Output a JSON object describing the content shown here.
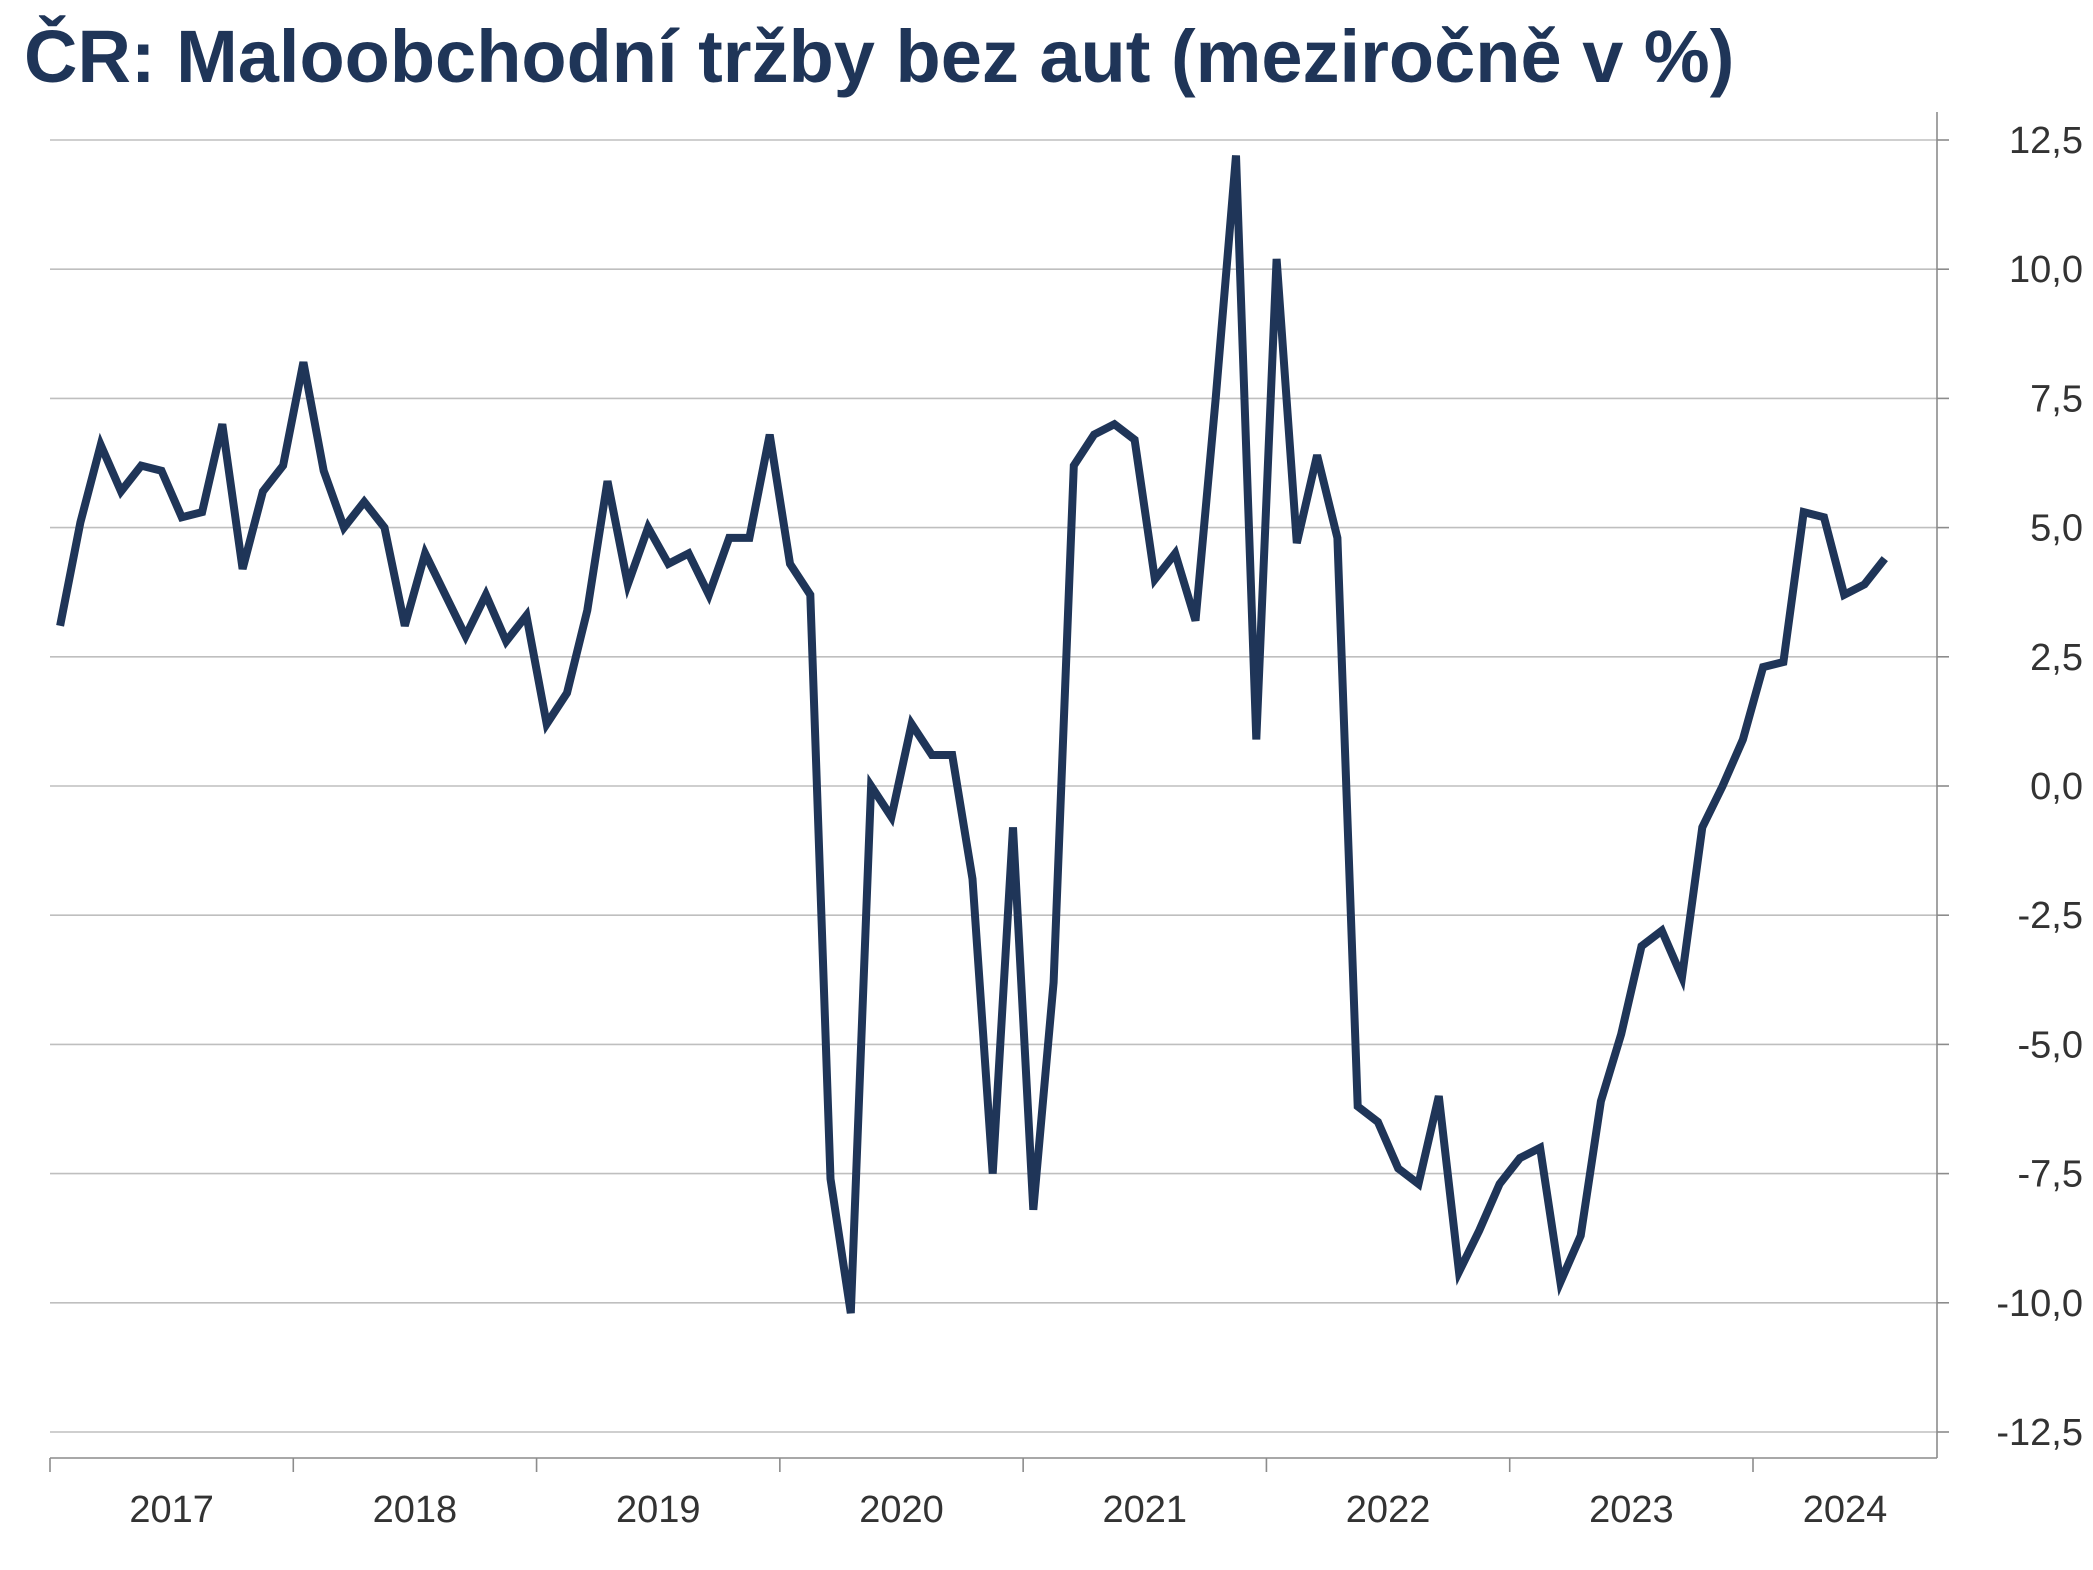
{
  "colors": {
    "title": "#1f3558",
    "line": "#1f3558",
    "grid": "#bfbfbf",
    "axis": "#8c8c8c",
    "tick_text": "#333333"
  },
  "chart_data": {
    "type": "line",
    "title": "ČR: Maloobchodní tržby bez aut (meziročně v %)",
    "xlabel": "",
    "ylabel": "",
    "y_axis_side": "right",
    "grid": "horizontal",
    "legend": "none",
    "ylim": [
      -12.5,
      12.5
    ],
    "yticks": [
      12.5,
      10,
      7.5,
      5,
      2.5,
      0,
      -2.5,
      -5,
      -7.5,
      -10,
      -12.5
    ],
    "ytick_labels": [
      "12,5",
      "10,0",
      "7,5",
      "5,0",
      "2,5",
      "0,0",
      "-2,5",
      "-5,0",
      "-7,5",
      "-10,0",
      "-12,5"
    ],
    "x_start": "2017-01",
    "x_end": "2024-07",
    "xtick_labels": [
      "2017",
      "2018",
      "2019",
      "2020",
      "2021",
      "2022",
      "2023",
      "2024"
    ],
    "series": [
      {
        "values": [
          3.1,
          5.1,
          6.6,
          5.7,
          6.2,
          6.1,
          5.2,
          5.3,
          7.0,
          4.2,
          5.7,
          6.2,
          8.2,
          6.1,
          5.0,
          5.5,
          5.0,
          3.1,
          4.5,
          3.7,
          2.9,
          3.7,
          2.8,
          3.3,
          1.2,
          1.8,
          3.4,
          5.9,
          3.9,
          5.0,
          4.3,
          4.5,
          3.7,
          4.8,
          4.8,
          6.8,
          4.3,
          3.7,
          -7.6,
          -10.2,
          0.0,
          -0.6,
          1.2,
          0.6,
          0.6,
          -1.8,
          -7.5,
          -0.8,
          -8.2,
          -3.8,
          6.2,
          6.8,
          7.0,
          6.7,
          4.0,
          4.5,
          3.2,
          7.5,
          12.2,
          0.9,
          10.2,
          4.7,
          6.4,
          4.8,
          -6.2,
          -6.5,
          -7.4,
          -7.7,
          -6.0,
          -9.4,
          -8.6,
          -7.7,
          -7.2,
          -7.0,
          -9.6,
          -8.7,
          -6.1,
          -4.8,
          -3.1,
          -2.8,
          -3.7,
          -0.8,
          0.0,
          0.9,
          2.3,
          2.4,
          5.3,
          5.2,
          3.7,
          3.9,
          4.4
        ]
      }
    ]
  }
}
